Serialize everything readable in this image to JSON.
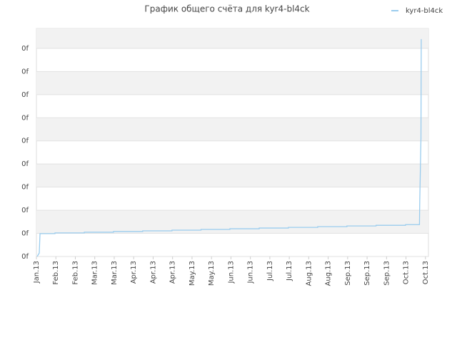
{
  "chart_data": {
    "type": "line",
    "title": "График общего счёта для kyr4-bl4ck",
    "series": [
      {
        "name": "kyr4-bl4ck",
        "color": "#99ccee",
        "x": [
          0.5,
          1.9,
          2.4,
          12.4,
          12.4,
          32,
          32,
          51.5,
          51.5,
          71,
          71,
          90.6,
          90.6,
          110,
          110,
          129.3,
          129.3,
          148.9,
          148.9,
          168.4,
          168.4,
          188,
          188,
          207.5,
          207.5,
          227,
          227,
          246.7,
          246.7,
          256,
          256.2,
          257,
          257.2
        ],
        "values": [
          0,
          0.15,
          0.99,
          0.99,
          1.02,
          1.02,
          1.05,
          1.05,
          1.08,
          1.08,
          1.11,
          1.11,
          1.14,
          1.14,
          1.17,
          1.17,
          1.2,
          1.2,
          1.23,
          1.23,
          1.26,
          1.26,
          1.29,
          1.29,
          1.32,
          1.32,
          1.35,
          1.35,
          1.38,
          1.38,
          2.4,
          5.1,
          9.4
        ]
      }
    ],
    "xlim": [
      0,
      262
    ],
    "xticks": [
      {
        "value": 0,
        "label": "Jan.13"
      },
      {
        "value": 13,
        "label": "Feb.13"
      },
      {
        "value": 26,
        "label": "Feb.13"
      },
      {
        "value": 39,
        "label": "Mar.13"
      },
      {
        "value": 52,
        "label": "Mar.13"
      },
      {
        "value": 65,
        "label": "Apr.13"
      },
      {
        "value": 78,
        "label": "Apr.13"
      },
      {
        "value": 91,
        "label": "Apr.13"
      },
      {
        "value": 104,
        "label": "May.13"
      },
      {
        "value": 117,
        "label": "May.13"
      },
      {
        "value": 130,
        "label": "Jun.13"
      },
      {
        "value": 143,
        "label": "Jun.13"
      },
      {
        "value": 156,
        "label": "Jul.13"
      },
      {
        "value": 169,
        "label": "Jul.13"
      },
      {
        "value": 182,
        "label": "Aug.13"
      },
      {
        "value": 195,
        "label": "Aug.13"
      },
      {
        "value": 208,
        "label": "Sep.13"
      },
      {
        "value": 221,
        "label": "Sep.13"
      },
      {
        "value": 234,
        "label": "Sep.13"
      },
      {
        "value": 247,
        "label": "Oct.13"
      },
      {
        "value": 260,
        "label": "Oct.13"
      }
    ],
    "ylim": [
      0,
      9.86
    ],
    "yticks": [
      {
        "value": 0,
        "label": "0f"
      },
      {
        "value": 1,
        "label": "0f"
      },
      {
        "value": 2,
        "label": "0f"
      },
      {
        "value": 3,
        "label": "0f"
      },
      {
        "value": 4,
        "label": "0f"
      },
      {
        "value": 5,
        "label": "0f"
      },
      {
        "value": 6,
        "label": "0f"
      },
      {
        "value": 7,
        "label": "0f"
      },
      {
        "value": 8,
        "label": "0f"
      },
      {
        "value": 9,
        "label": "0f"
      }
    ],
    "grid": true,
    "legend": "top-right"
  }
}
